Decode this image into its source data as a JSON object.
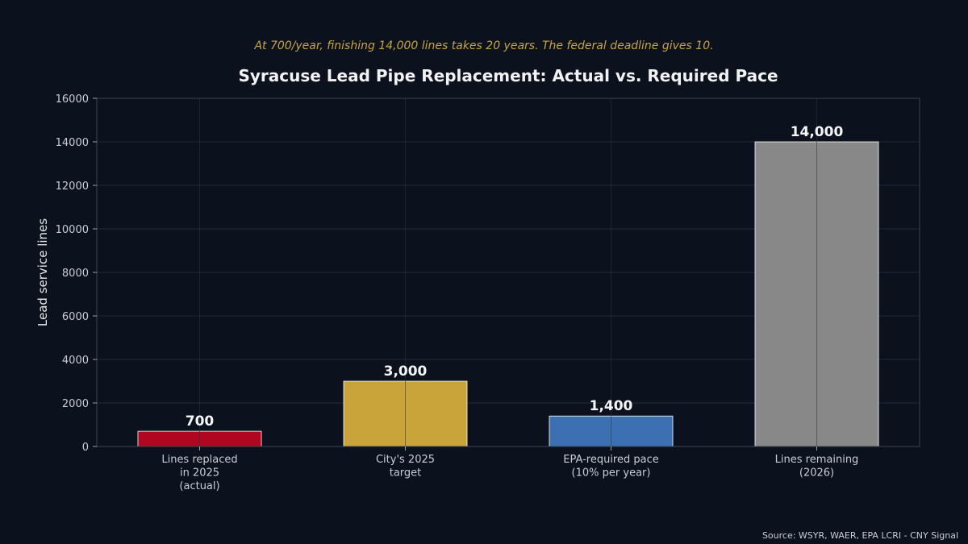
{
  "chart_data": {
    "type": "bar",
    "subtitle": "At 700/year, finishing 14,000 lines takes 20 years. The federal deadline gives 10.",
    "title": "Syracuse Lead Pipe Replacement: Actual vs. Required Pace",
    "xlabel": "",
    "ylabel": "Lead service lines",
    "ylim": [
      0,
      16000
    ],
    "yticks": [
      0,
      2000,
      4000,
      6000,
      8000,
      10000,
      12000,
      14000,
      16000
    ],
    "grid": true,
    "categories": [
      [
        "Lines replaced",
        "in 2025",
        "(actual)"
      ],
      [
        "City's 2025",
        "target"
      ],
      [
        "EPA-required pace",
        "(10% per year)"
      ],
      [
        "Lines remaining",
        "(2026)"
      ]
    ],
    "values": [
      700,
      3000,
      1400,
      14000
    ],
    "data_labels": [
      "700",
      "3,000",
      "1,400",
      "14,000"
    ],
    "colors": [
      "#b0061f",
      "#c9a43a",
      "#3d70b2",
      "#888888"
    ],
    "source": "Source: WSYR, WAER, EPA LCRI - CNY Signal"
  },
  "theme": {
    "background": "#0b121e",
    "grid": "#1f2a38",
    "axis": "#3a4452",
    "bar_edge": "#ffffff"
  }
}
